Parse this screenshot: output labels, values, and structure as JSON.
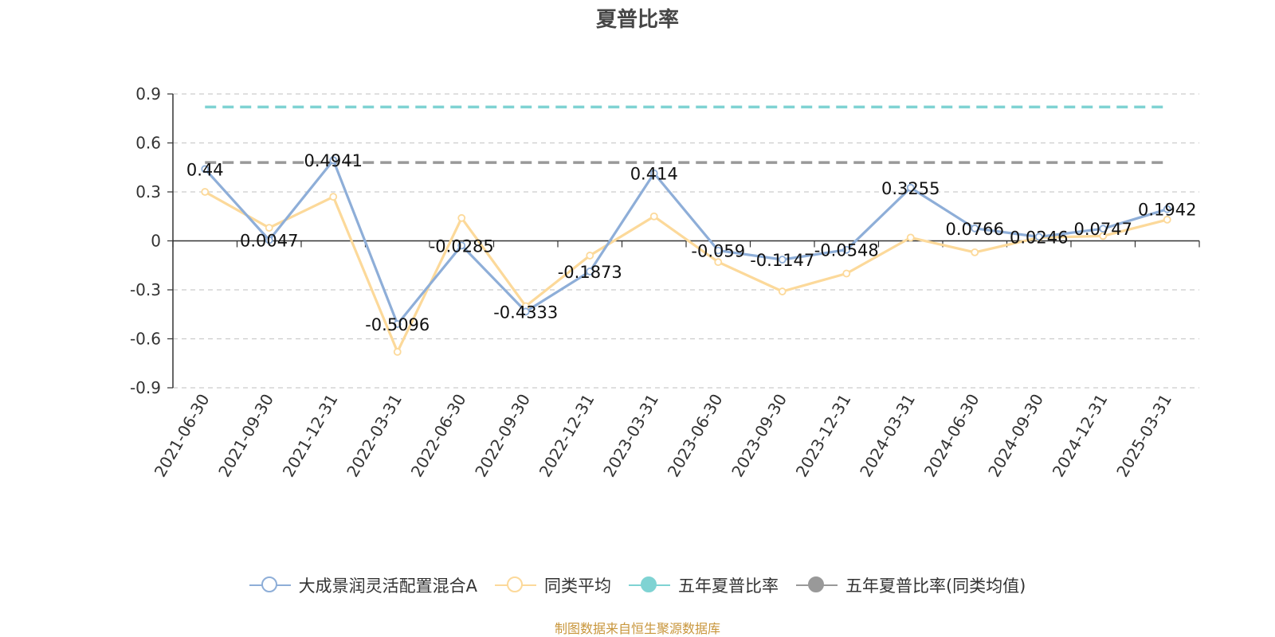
{
  "chart_data": {
    "type": "line",
    "title": "夏普比率",
    "categories": [
      "2021-06-30",
      "2021-09-30",
      "2021-12-31",
      "2022-03-31",
      "2022-06-30",
      "2022-09-30",
      "2022-12-31",
      "2023-03-31",
      "2023-06-30",
      "2023-09-30",
      "2023-12-31",
      "2024-03-31",
      "2024-06-30",
      "2024-09-30",
      "2024-12-31",
      "2025-03-31"
    ],
    "y_ticks": [
      "0.9",
      "0.6",
      "0.3",
      "0",
      "-0.3",
      "-0.6",
      "-0.9"
    ],
    "ylim": [
      -0.9,
      0.9
    ],
    "grid": "horizontal dashed",
    "legend_position": "bottom",
    "series": [
      {
        "name": "大成景润灵活配置混合A",
        "color": "#8eaed8",
        "values": [
          0.44,
          0.0047,
          0.4941,
          -0.5096,
          -0.0285,
          -0.4333,
          -0.1873,
          0.414,
          -0.059,
          -0.1147,
          -0.0548,
          0.3255,
          0.0766,
          0.0246,
          0.0747,
          0.1942
        ],
        "labels": [
          "0.44",
          "0.0047",
          "0.4941",
          "-0.5096",
          "-0.0285",
          "-0.4333",
          "-0.1873",
          "0.414",
          "-0.059",
          "-0.1147",
          "-0.0548",
          "0.3255",
          "0.0766",
          "0.0246",
          "0.0747",
          "0.1942"
        ]
      },
      {
        "name": "同类平均",
        "color": "#fcd99a",
        "values": [
          0.3,
          0.08,
          0.27,
          -0.68,
          0.14,
          -0.4,
          -0.09,
          0.15,
          -0.13,
          -0.31,
          -0.2,
          0.02,
          -0.07,
          0.02,
          0.03,
          0.13
        ]
      },
      {
        "name": "五年夏普比率",
        "color": "#7fd3d3",
        "constant": 0.82
      },
      {
        "name": "五年夏普比率(同类均值)",
        "color": "#999999",
        "constant": 0.48
      }
    ]
  },
  "source_note": "制图数据来自恒生聚源数据库"
}
